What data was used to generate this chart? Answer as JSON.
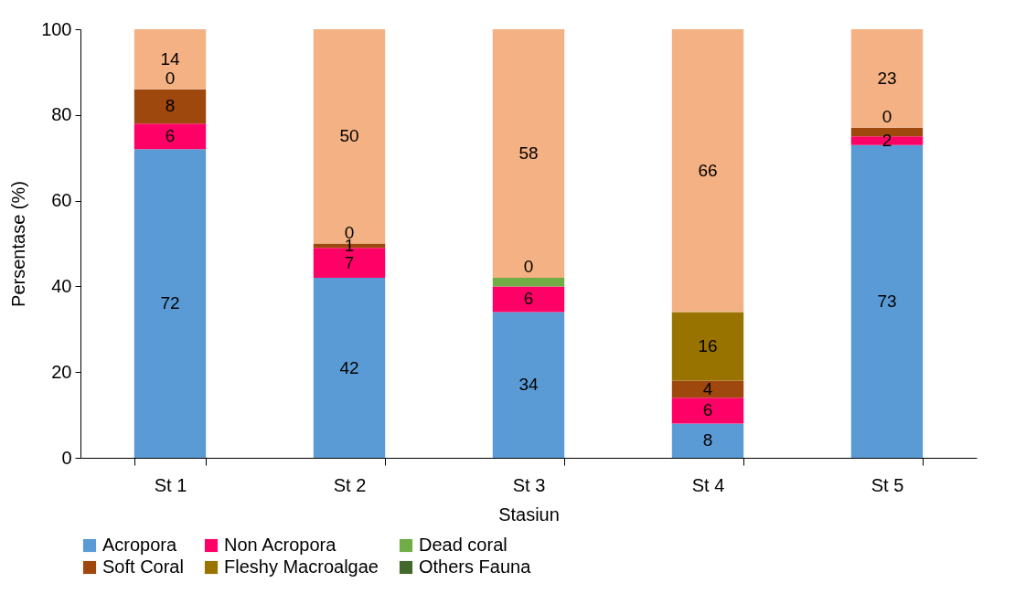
{
  "chart_data": {
    "type": "bar",
    "stacked": true,
    "xlabel": "Stasiun",
    "ylabel": "Persentase (%)",
    "categories": [
      "St 1",
      "St 2",
      "St 3",
      "St 4",
      "St 5"
    ],
    "annotations": [
      {
        "text": "0",
        "x": "St 1",
        "y": 86
      },
      {
        "text": "0",
        "x": "St 2",
        "y": 50
      },
      {
        "text": "0",
        "x": "St 3",
        "y": 42
      },
      {
        "text": "0",
        "x": "St 5",
        "y": 77
      }
    ],
    "ylim": [
      0,
      100
    ],
    "yticks": [
      0,
      20,
      40,
      60,
      80,
      100
    ],
    "grid": false,
    "legend": "bottom",
    "series": [
      {
        "name": "Acropora",
        "color": "#5b9bd5",
        "values": [
          72,
          42,
          34,
          8,
          73
        ],
        "value_labels": [
          "72",
          "42",
          "34",
          "8",
          "73"
        ]
      },
      {
        "name": "Non Acropora",
        "color": "#ff0066",
        "values": [
          6,
          7,
          6,
          6,
          2
        ],
        "value_labels": [
          "6",
          "7",
          "6",
          "6",
          "2"
        ]
      },
      {
        "name": "Dead coral",
        "color": "#70ad47",
        "values": [
          0,
          0,
          2,
          0,
          0
        ],
        "value_labels": [
          null,
          null,
          null,
          null,
          null
        ]
      },
      {
        "name": "Soft Coral",
        "color": "#9e480e",
        "values": [
          8,
          1,
          0,
          4,
          2
        ],
        "value_labels": [
          "8",
          "1",
          null,
          "4",
          null
        ]
      },
      {
        "name": "Fleshy Macroalgae",
        "color": "#997300",
        "values": [
          0,
          0,
          0,
          16,
          0
        ],
        "value_labels": [
          null,
          null,
          null,
          "16",
          null
        ]
      },
      {
        "name": "Others Fauna",
        "color": "#43682b",
        "values": [
          0,
          0,
          0,
          0,
          0
        ]
      },
      {
        "color": "#f4b183",
        "values": [
          14,
          50,
          58,
          66,
          23
        ],
        "value_labels": [
          "14",
          "50",
          "58",
          "66",
          "23"
        ]
      }
    ]
  }
}
